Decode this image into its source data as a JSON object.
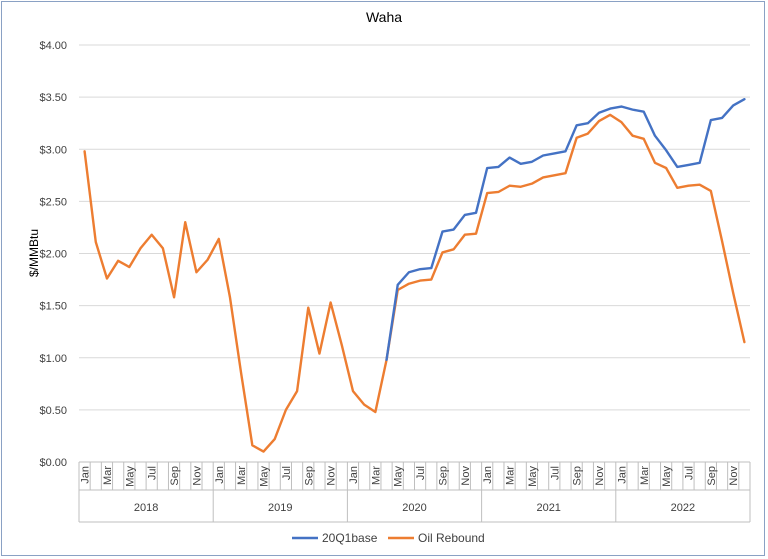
{
  "chart_data": {
    "type": "line",
    "title": "Waha",
    "ylabel": "$/MMBtu",
    "xlabel": "",
    "ylim": [
      0,
      4
    ],
    "y_ticks": [
      "$0.00",
      "$0.50",
      "$1.00",
      "$1.50",
      "$2.00",
      "$2.50",
      "$3.00",
      "$3.50",
      "$4.00"
    ],
    "years": [
      "2018",
      "2019",
      "2020",
      "2021",
      "2022"
    ],
    "month_labels": [
      "Jan",
      "Mar",
      "May",
      "Jul",
      "Sep",
      "Nov"
    ],
    "grid": "horizontal",
    "legend_position": "bottom",
    "x": [
      "2018-01",
      "2018-02",
      "2018-03",
      "2018-04",
      "2018-05",
      "2018-06",
      "2018-07",
      "2018-08",
      "2018-09",
      "2018-10",
      "2018-11",
      "2018-12",
      "2019-01",
      "2019-02",
      "2019-03",
      "2019-04",
      "2019-05",
      "2019-06",
      "2019-07",
      "2019-08",
      "2019-09",
      "2019-10",
      "2019-11",
      "2019-12",
      "2020-01",
      "2020-02",
      "2020-03",
      "2020-04",
      "2020-05",
      "2020-06",
      "2020-07",
      "2020-08",
      "2020-09",
      "2020-10",
      "2020-11",
      "2020-12",
      "2021-01",
      "2021-02",
      "2021-03",
      "2021-04",
      "2021-05",
      "2021-06",
      "2021-07",
      "2021-08",
      "2021-09",
      "2021-10",
      "2021-11",
      "2021-12",
      "2022-01",
      "2022-02",
      "2022-03",
      "2022-04",
      "2022-05",
      "2022-06",
      "2022-07",
      "2022-08",
      "2022-09",
      "2022-10",
      "2022-11",
      "2022-12"
    ],
    "series": [
      {
        "name": "20Q1base",
        "color": "#4472c4",
        "values": [
          null,
          null,
          null,
          null,
          null,
          null,
          null,
          null,
          null,
          null,
          null,
          null,
          null,
          null,
          null,
          null,
          null,
          null,
          null,
          null,
          null,
          null,
          null,
          null,
          null,
          null,
          null,
          0.98,
          1.7,
          1.82,
          1.85,
          1.86,
          2.21,
          2.23,
          2.37,
          2.39,
          2.82,
          2.83,
          2.92,
          2.86,
          2.88,
          2.94,
          2.96,
          2.98,
          3.23,
          3.25,
          3.35,
          3.39,
          3.41,
          3.38,
          3.36,
          3.13,
          2.99,
          2.83,
          2.85,
          2.87,
          3.28,
          3.3,
          3.42,
          3.48
        ]
      },
      {
        "name": "Oil Rebound",
        "color": "#ed7d31",
        "values": [
          2.98,
          2.11,
          1.76,
          1.93,
          1.87,
          2.05,
          2.18,
          2.05,
          1.58,
          2.3,
          1.82,
          1.94,
          2.14,
          1.58,
          0.85,
          0.16,
          0.1,
          0.22,
          0.5,
          0.68,
          1.48,
          1.04,
          1.53,
          1.12,
          0.68,
          0.55,
          0.48,
          0.98,
          1.65,
          1.71,
          1.74,
          1.75,
          2.01,
          2.04,
          2.18,
          2.19,
          2.58,
          2.59,
          2.65,
          2.64,
          2.67,
          2.73,
          2.75,
          2.77,
          3.11,
          3.15,
          3.27,
          3.33,
          3.26,
          3.13,
          3.1,
          2.87,
          2.82,
          2.63,
          2.65,
          2.66,
          2.6,
          2.12,
          1.62,
          1.15
        ]
      }
    ]
  }
}
